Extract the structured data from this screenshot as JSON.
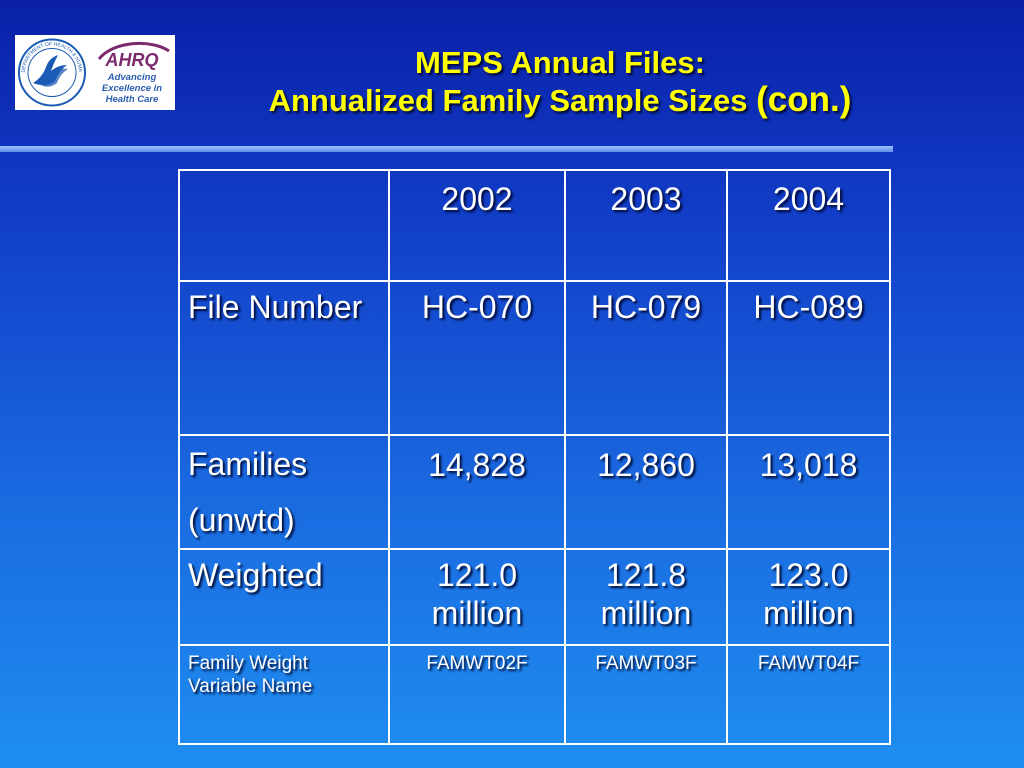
{
  "logos": {
    "hhs_text": "DEPARTMENT OF HEALTH & HUMAN SERVICES USA",
    "ahrq_name": "AHRQ",
    "ahrq_tagline": [
      "Advancing",
      "Excellence in",
      "Health Care"
    ]
  },
  "title": {
    "line1": "MEPS Annual Files:",
    "line2_main": "Annualized Family Sample Sizes ",
    "line2_suffix": "(con.)"
  },
  "table": {
    "headers": [
      "",
      "2002",
      "2003",
      "2004"
    ],
    "rows": [
      {
        "label": "File Number",
        "values": [
          "HC-070",
          "HC-079",
          "HC-089"
        ]
      },
      {
        "label_lines": [
          "Families",
          "(unwtd)"
        ],
        "values": [
          "14,828",
          "12,860",
          "13,018"
        ]
      },
      {
        "label": "Weighted",
        "values": [
          "121.0 million",
          "121.8 million",
          "123.0 million"
        ]
      },
      {
        "label": "Family Weight Variable Name",
        "values": [
          "FAMWT02F",
          "FAMWT03F",
          "FAMWT04F"
        ]
      }
    ]
  },
  "colors": {
    "title": "#ffff00",
    "background_top": "#0a1fa8",
    "background_bottom": "#1f8ef0",
    "table_border": "#ffffff"
  }
}
